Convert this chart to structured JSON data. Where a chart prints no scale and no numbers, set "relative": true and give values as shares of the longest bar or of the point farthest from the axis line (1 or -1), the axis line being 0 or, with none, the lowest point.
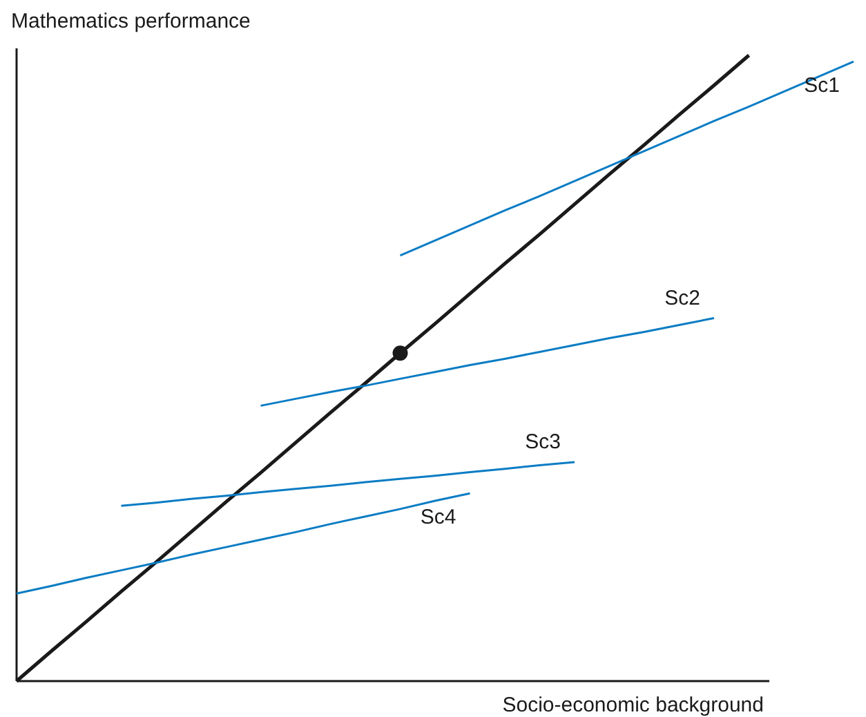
{
  "chart_data": {
    "type": "line",
    "relative": true,
    "xlabel": "Socio-economic background",
    "ylabel": "Mathematics performance",
    "categories": [
      null,
      null,
      null,
      null,
      null,
      null,
      null,
      null,
      null,
      null,
      null,
      null,
      null,
      null,
      null,
      null,
      null,
      null,
      null,
      null,
      null,
      null,
      null,
      null,
      null
    ],
    "series": [
      {
        "color": "#1a1a1a",
        "values": [
          0,
          0.048,
          0.095,
          0.143,
          0.19,
          0.238,
          0.286,
          0.333,
          0.381,
          0.429,
          0.476,
          0.524,
          0.571,
          0.619,
          0.667,
          0.714,
          0.762,
          0.81,
          0.857,
          0.905,
          0.952,
          1,
          null,
          null,
          null
        ]
      },
      {
        "name": "Sc1",
        "color": "#0a7cc4",
        "values": [
          null,
          null,
          null,
          null,
          null,
          null,
          null,
          null,
          null,
          null,
          null,
          0.68,
          0.704,
          0.728,
          0.752,
          0.775,
          0.799,
          0.823,
          0.847,
          0.871,
          0.895,
          0.918,
          0.942,
          0.966,
          0.99
        ]
      },
      {
        "name": "Sc2",
        "color": "#0a7cc4",
        "values": [
          null,
          null,
          null,
          null,
          null,
          null,
          null,
          0.44,
          0.451,
          0.462,
          0.472,
          0.483,
          0.494,
          0.505,
          0.515,
          0.526,
          0.537,
          0.548,
          0.558,
          0.569,
          0.58,
          null,
          null,
          null,
          null
        ]
      },
      {
        "name": "Sc3",
        "color": "#0a7cc4",
        "values": [
          null,
          null,
          null,
          0.28,
          0.285,
          0.291,
          0.296,
          0.302,
          0.307,
          0.312,
          0.318,
          0.323,
          0.328,
          0.334,
          0.339,
          0.345,
          0.35,
          null,
          null,
          null,
          null,
          null,
          null,
          null,
          null
        ]
      },
      {
        "name": "Sc4",
        "color": "#0a7cc4",
        "values": [
          0.14,
          0.152,
          0.165,
          0.177,
          0.189,
          0.202,
          0.214,
          0.226,
          0.238,
          0.251,
          0.263,
          0.275,
          0.288,
          0.3,
          null,
          null,
          null,
          null,
          null,
          null,
          null,
          null,
          null,
          null,
          null
        ]
      }
    ]
  }
}
